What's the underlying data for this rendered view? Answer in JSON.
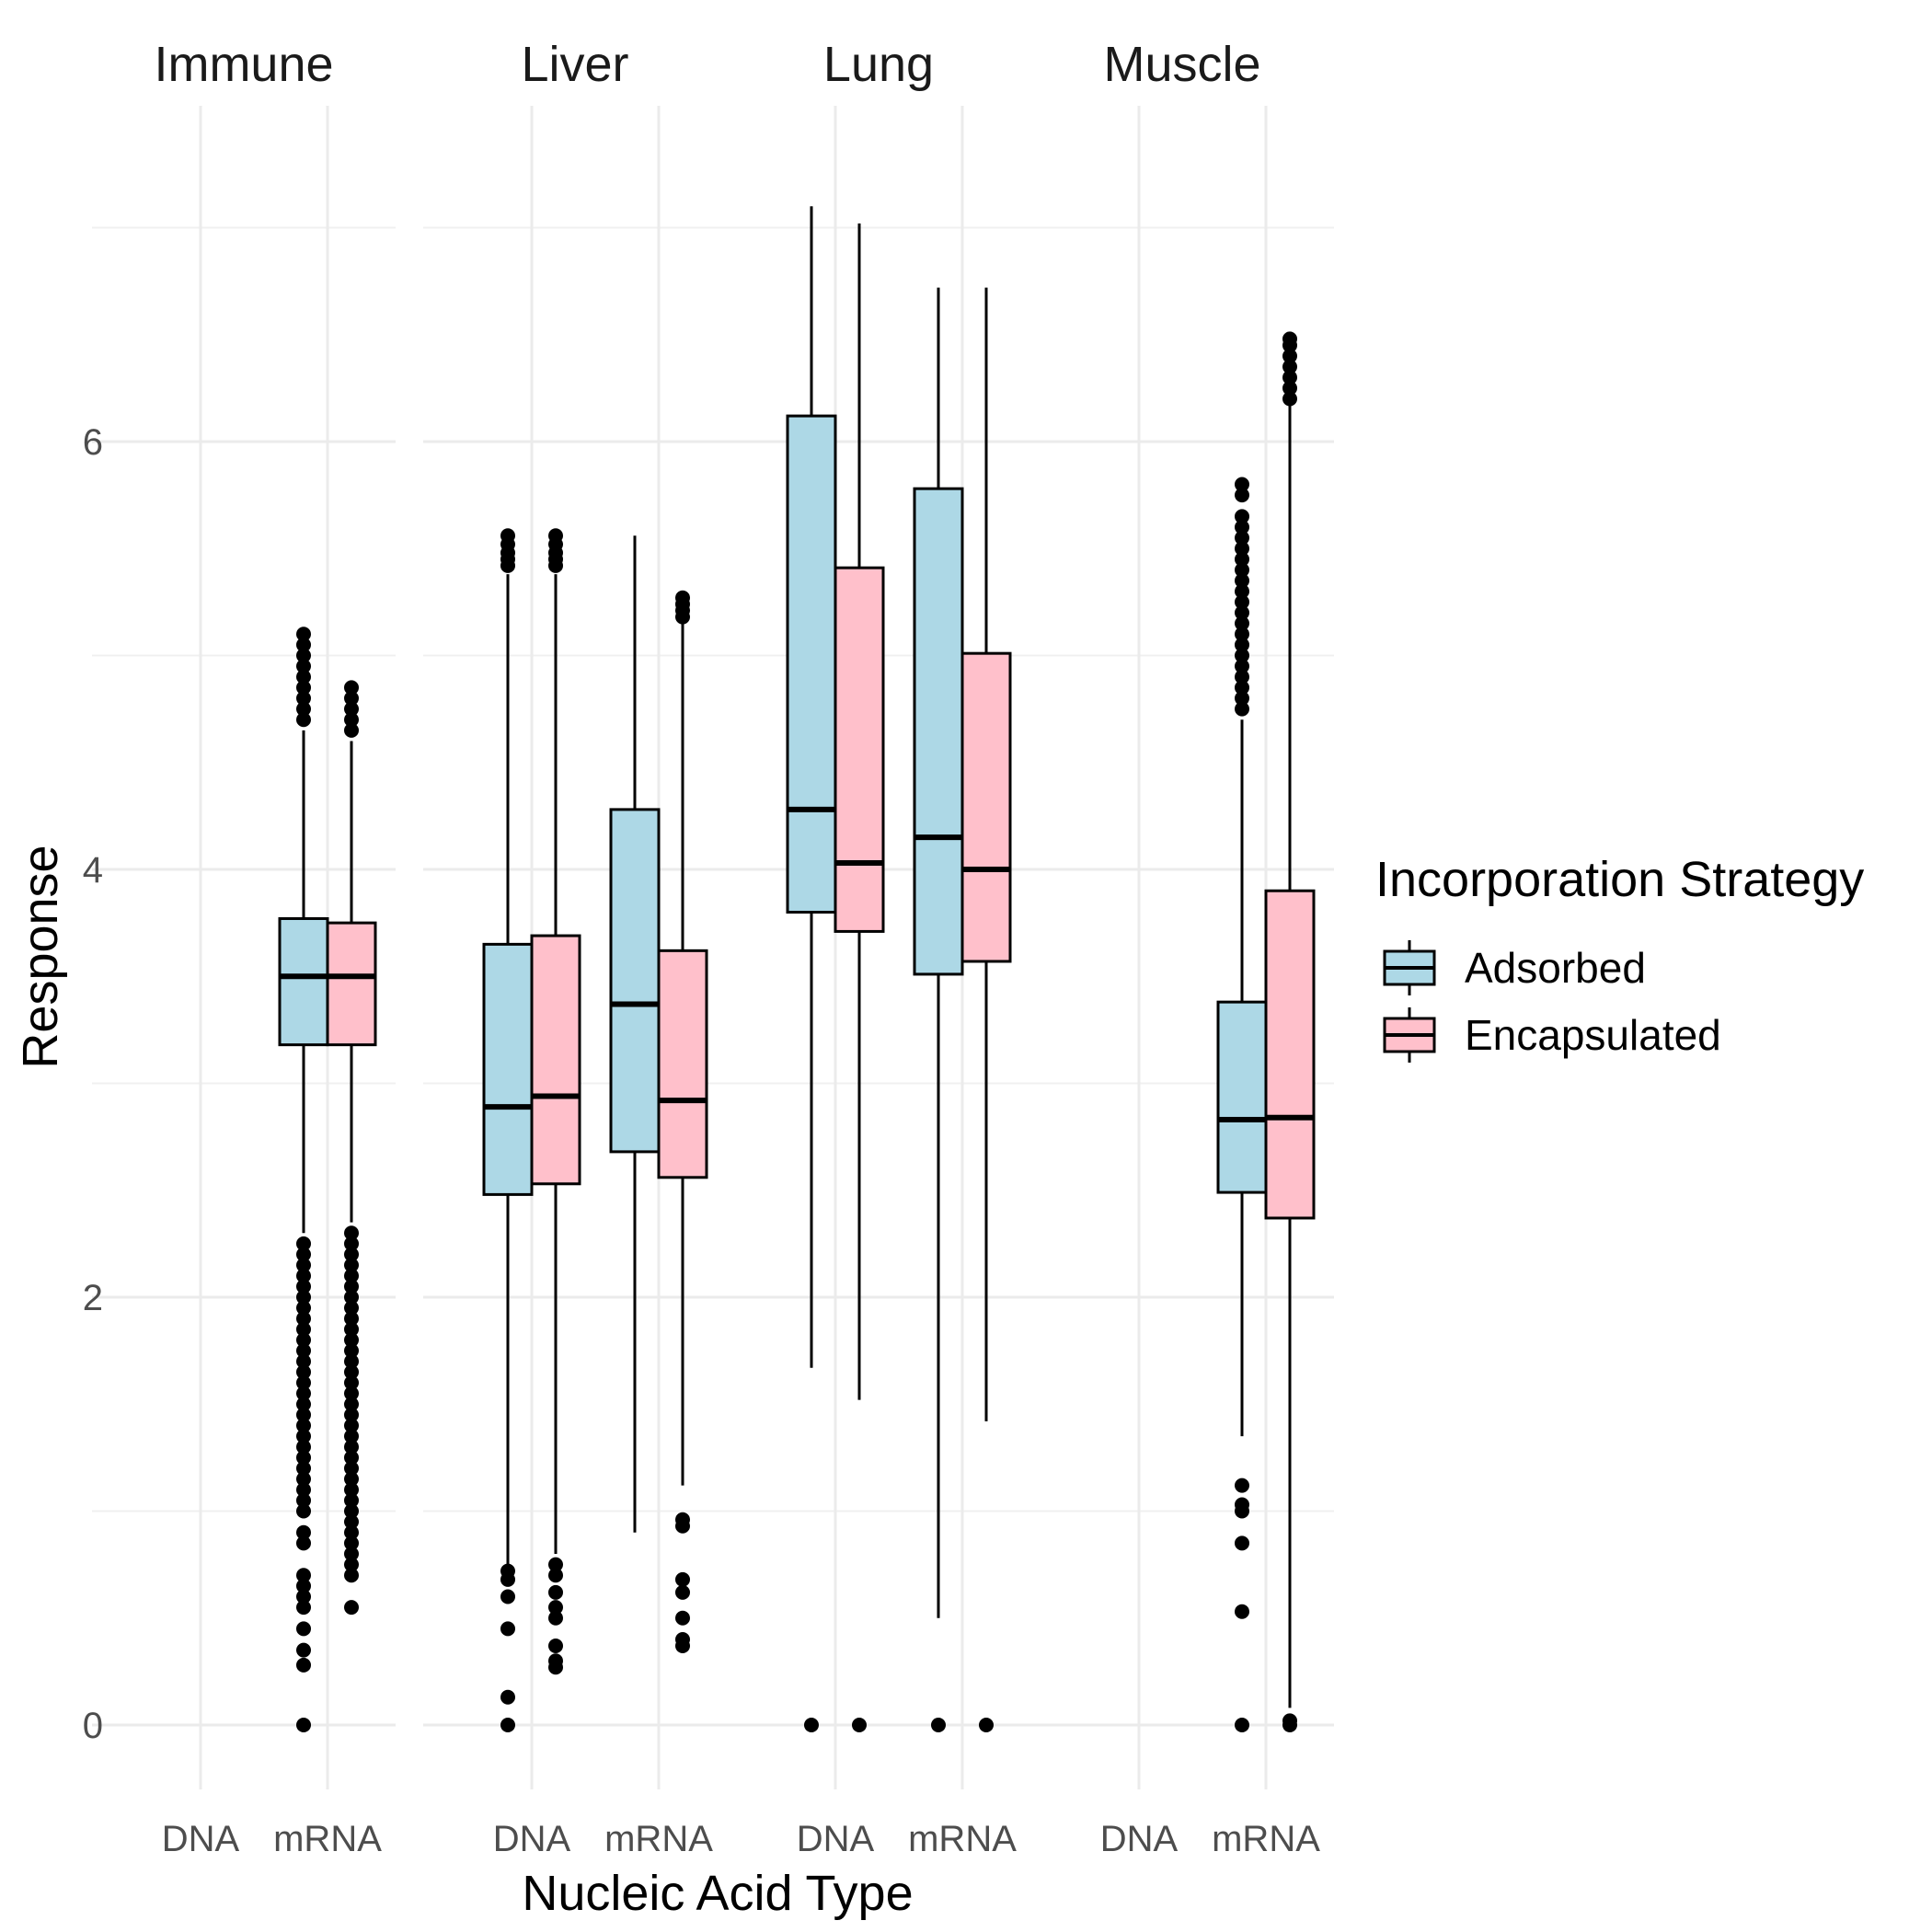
{
  "chart_data": {
    "type": "boxplot",
    "facets": [
      "Immune",
      "Liver",
      "Lung",
      "Muscle"
    ],
    "categories": [
      "DNA",
      "mRNA"
    ],
    "xlabel": "Nucleic Acid Type",
    "ylabel": "Response",
    "ylim": [
      -0.35,
      7.6
    ],
    "yticks": [
      0,
      2,
      4,
      6
    ],
    "grid": true,
    "legend": {
      "title": "Incorporation Strategy",
      "placement": "right",
      "entries": [
        {
          "label": "Adsorbed",
          "color": "#add8e6"
        },
        {
          "label": "Encapsulated",
          "color": "#ffc0cb"
        }
      ]
    },
    "series": [
      {
        "name": "Adsorbed",
        "color": "#add8e6",
        "boxes": [
          {
            "facet": "Immune",
            "category": "mRNA",
            "whisker_low": 2.3,
            "q1": 3.18,
            "median": 3.5,
            "q3": 3.77,
            "whisker_high": 4.65,
            "outliers": [
              0,
              0.28,
              0.35,
              0.45,
              0.55,
              0.6,
              0.65,
              0.7,
              0.85,
              0.9,
              1.0,
              1.05,
              1.1,
              1.15,
              1.2,
              1.25,
              1.3,
              1.35,
              1.4,
              1.45,
              1.5,
              1.55,
              1.6,
              1.65,
              1.7,
              1.75,
              1.8,
              1.85,
              1.9,
              1.95,
              2.0,
              2.05,
              2.1,
              2.15,
              2.2,
              2.25,
              4.7,
              4.75,
              4.8,
              4.85,
              4.9,
              4.95,
              5.0,
              5.05,
              5.1
            ]
          },
          {
            "facet": "Liver",
            "category": "DNA",
            "whisker_low": 0.75,
            "q1": 2.48,
            "median": 2.89,
            "q3": 3.65,
            "whisker_high": 5.38,
            "outliers": [
              0,
              0.13,
              0.45,
              0.6,
              0.68,
              0.72,
              5.42,
              5.45,
              5.48,
              5.52,
              5.56
            ]
          },
          {
            "facet": "Liver",
            "category": "mRNA",
            "whisker_low": 0.9,
            "q1": 2.68,
            "median": 3.37,
            "q3": 4.28,
            "whisker_high": 5.56,
            "outliers": []
          },
          {
            "facet": "Lung",
            "category": "DNA",
            "whisker_low": 1.67,
            "q1": 3.8,
            "median": 4.28,
            "q3": 6.12,
            "whisker_high": 7.1,
            "outliers": [
              0
            ]
          },
          {
            "facet": "Lung",
            "category": "mRNA",
            "whisker_low": 0.5,
            "q1": 3.51,
            "median": 4.15,
            "q3": 5.78,
            "whisker_high": 6.72,
            "outliers": [
              0
            ]
          },
          {
            "facet": "Muscle",
            "category": "mRNA",
            "whisker_low": 1.35,
            "q1": 2.49,
            "median": 2.83,
            "q3": 3.38,
            "whisker_high": 4.7,
            "outliers": [
              0,
              0.53,
              0.85,
              1.0,
              1.03,
              1.12,
              4.75,
              4.8,
              4.85,
              4.9,
              4.95,
              5.0,
              5.05,
              5.1,
              5.15,
              5.2,
              5.25,
              5.3,
              5.35,
              5.4,
              5.45,
              5.5,
              5.55,
              5.6,
              5.65,
              5.75,
              5.8
            ]
          }
        ]
      },
      {
        "name": "Encapsulated",
        "color": "#ffc0cb",
        "boxes": [
          {
            "facet": "Immune",
            "category": "mRNA",
            "whisker_low": 2.35,
            "q1": 3.18,
            "median": 3.5,
            "q3": 3.75,
            "whisker_high": 4.6,
            "outliers": [
              0.55,
              0.7,
              0.75,
              0.8,
              0.85,
              0.9,
              0.95,
              1.0,
              1.05,
              1.1,
              1.15,
              1.2,
              1.25,
              1.3,
              1.35,
              1.4,
              1.45,
              1.5,
              1.55,
              1.6,
              1.65,
              1.7,
              1.75,
              1.8,
              1.85,
              1.9,
              1.95,
              2.0,
              2.05,
              2.1,
              2.15,
              2.2,
              2.25,
              2.3,
              4.65,
              4.7,
              4.75,
              4.8,
              4.85
            ]
          },
          {
            "facet": "Liver",
            "category": "DNA",
            "whisker_low": 0.8,
            "q1": 2.53,
            "median": 2.94,
            "q3": 3.69,
            "whisker_high": 5.38,
            "outliers": [
              0.27,
              0.3,
              0.37,
              0.5,
              0.55,
              0.62,
              0.7,
              0.75,
              5.42,
              5.45,
              5.48,
              5.52,
              5.56
            ]
          },
          {
            "facet": "Liver",
            "category": "mRNA",
            "whisker_low": 1.12,
            "q1": 2.56,
            "median": 2.92,
            "q3": 3.62,
            "whisker_high": 5.15,
            "outliers": [
              0.37,
              0.4,
              0.5,
              0.62,
              0.68,
              0.93,
              0.96,
              5.18,
              5.21,
              5.24,
              5.27
            ]
          },
          {
            "facet": "Lung",
            "category": "DNA",
            "whisker_low": 1.52,
            "q1": 3.71,
            "median": 4.03,
            "q3": 5.41,
            "whisker_high": 7.02,
            "outliers": [
              0
            ]
          },
          {
            "facet": "Lung",
            "category": "mRNA",
            "whisker_low": 1.42,
            "q1": 3.57,
            "median": 4.0,
            "q3": 5.01,
            "whisker_high": 6.72,
            "outliers": [
              0
            ]
          },
          {
            "facet": "Muscle",
            "category": "mRNA",
            "whisker_low": 0.08,
            "q1": 2.37,
            "median": 2.84,
            "q3": 3.9,
            "whisker_high": 6.18,
            "outliers": [
              0,
              0.02,
              6.2,
              6.25,
              6.3,
              6.35,
              6.4,
              6.45,
              6.48
            ]
          }
        ]
      }
    ]
  }
}
